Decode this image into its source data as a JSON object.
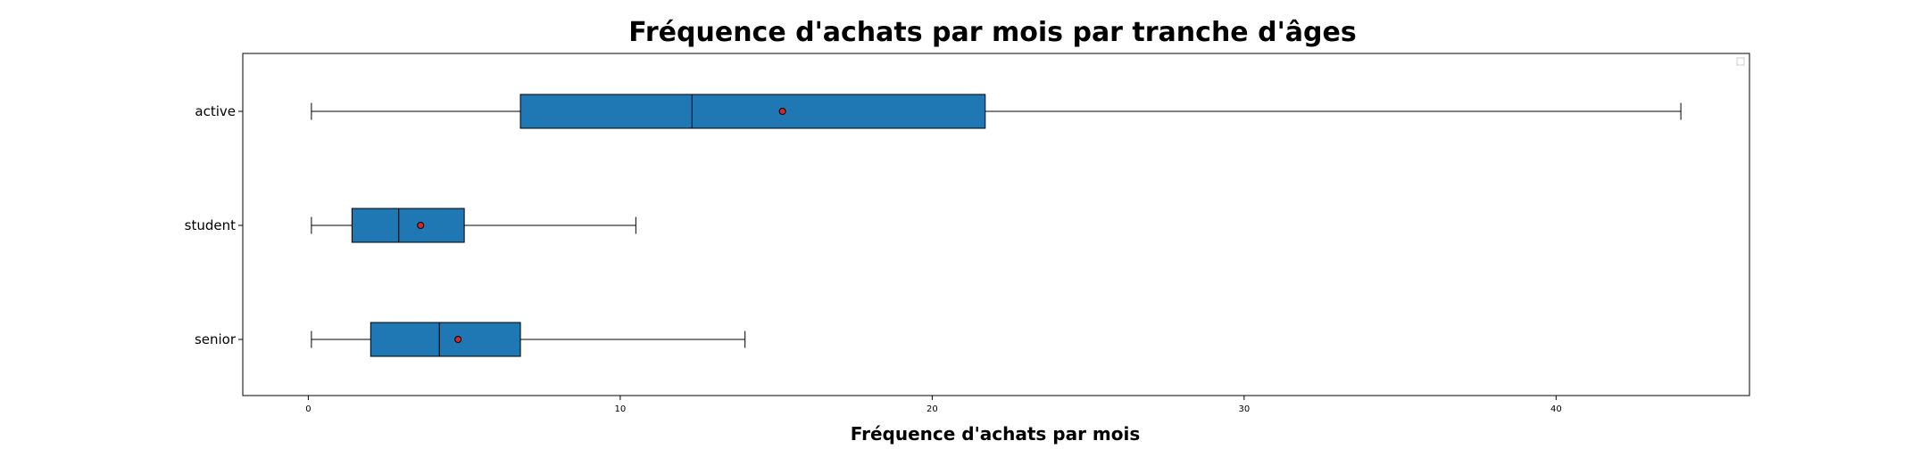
{
  "chart_data": {
    "type": "boxplot",
    "orientation": "horizontal",
    "title": "Fréquence d'achats par mois par tranche d'âges",
    "xlabel": "Fréquence d'achats par mois",
    "ylabel": "",
    "xlim": [
      -2.1,
      46.2
    ],
    "xticks": [
      0,
      10,
      20,
      30,
      40
    ],
    "grid": false,
    "legend": "top-right",
    "colors": {
      "box": "#1f77b4",
      "edge": "#000000",
      "mean": "#d62728"
    },
    "categories": [
      "active",
      "student",
      "senior"
    ],
    "boxes": [
      {
        "label": "active",
        "whisker_low": 0.1,
        "q1": 6.8,
        "median": 12.3,
        "q3": 21.7,
        "whisker_high": 44.0,
        "mean": 15.2
      },
      {
        "label": "student",
        "whisker_low": 0.1,
        "q1": 1.4,
        "median": 2.9,
        "q3": 5.0,
        "whisker_high": 10.5,
        "mean": 3.6
      },
      {
        "label": "senior",
        "whisker_low": 0.1,
        "q1": 2.0,
        "median": 4.2,
        "q3": 6.8,
        "whisker_high": 14.0,
        "mean": 4.8
      }
    ]
  }
}
